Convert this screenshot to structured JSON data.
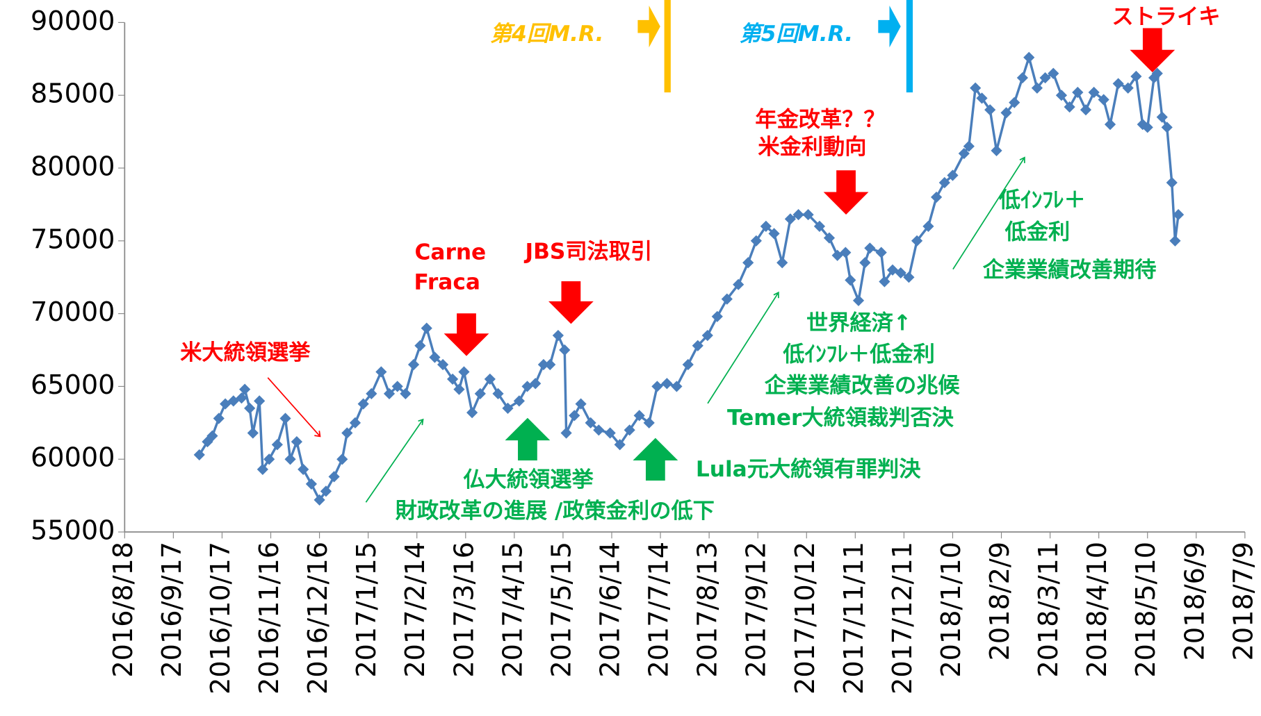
{
  "chart_data": {
    "type": "line",
    "xlim": [
      "2016/8/18",
      "2018/7/9"
    ],
    "xticks": [
      "2016/8/18",
      "2016/9/17",
      "2016/10/17",
      "2016/11/16",
      "2016/12/16",
      "2017/1/15",
      "2017/2/14",
      "2017/3/16",
      "2017/4/15",
      "2017/5/15",
      "2017/6/14",
      "2017/7/14",
      "2017/8/13",
      "2017/9/12",
      "2017/10/12",
      "2017/11/11",
      "2017/12/11",
      "2018/1/10",
      "2018/2/9",
      "2018/3/11",
      "2018/4/10",
      "2018/5/10",
      "2018/6/9",
      "2018/7/9"
    ],
    "ylim": [
      55000,
      90000
    ],
    "yticks": [
      55000,
      60000,
      65000,
      70000,
      75000,
      80000,
      85000,
      90000
    ],
    "x": [
      "2016/10/3",
      "2016/10/8",
      "2016/10/11",
      "2016/10/15",
      "2016/10/19",
      "2016/10/24",
      "2016/10/29",
      "2016/10/31",
      "2016/11/3",
      "2016/11/5",
      "2016/11/9",
      "2016/11/11",
      "2016/11/15",
      "2016/11/20",
      "2016/11/25",
      "2016/11/28",
      "2016/12/2",
      "2016/12/6",
      "2016/12/11",
      "2016/12/16",
      "2016/12/20",
      "2016/12/25",
      "2016/12/30",
      "2017/1/2",
      "2017/1/7",
      "2017/1/12",
      "2017/1/17",
      "2017/1/23",
      "2017/1/28",
      "2017/2/2",
      "2017/2/7",
      "2017/2/12",
      "2017/2/16",
      "2017/2/20",
      "2017/2/25",
      "2017/3/2",
      "2017/3/8",
      "2017/3/12",
      "2017/3/15",
      "2017/3/20",
      "2017/3/25",
      "2017/3/31",
      "2017/4/5",
      "2017/4/11",
      "2017/4/18",
      "2017/4/23",
      "2017/4/28",
      "2017/5/3",
      "2017/5/7",
      "2017/5/12",
      "2017/5/16",
      "2017/5/17",
      "2017/5/22",
      "2017/5/26",
      "2017/6/1",
      "2017/6/6",
      "2017/6/13",
      "2017/6/19",
      "2017/6/25",
      "2017/7/1",
      "2017/7/7",
      "2017/7/12",
      "2017/7/18",
      "2017/7/24",
      "2017/7/31",
      "2017/8/6",
      "2017/8/12",
      "2017/8/18",
      "2017/8/24",
      "2017/8/31",
      "2017/9/6",
      "2017/9/11",
      "2017/9/17",
      "2017/9/22",
      "2017/9/27",
      "2017/10/2",
      "2017/10/7",
      "2017/10/13",
      "2017/10/20",
      "2017/10/26",
      "2017/10/31",
      "2017/11/5",
      "2017/11/8",
      "2017/11/13",
      "2017/11/17",
      "2017/11/20",
      "2017/11/27",
      "2017/11/29",
      "2017/12/4",
      "2017/12/9",
      "2017/12/14",
      "2017/12/19",
      "2017/12/26",
      "2017/12/31",
      "2018/1/5",
      "2018/1/10",
      "2018/1/17",
      "2018/1/20",
      "2018/1/24",
      "2018/1/28",
      "2018/2/2",
      "2018/2/6",
      "2018/2/12",
      "2018/2/17",
      "2018/2/22",
      "2018/2/26",
      "2018/3/3",
      "2018/3/8",
      "2018/3/13",
      "2018/3/18",
      "2018/3/23",
      "2018/3/28",
      "2018/4/2",
      "2018/4/7",
      "2018/4/13",
      "2018/4/17",
      "2018/4/22",
      "2018/4/28",
      "2018/5/3",
      "2018/5/7",
      "2018/5/10",
      "2018/5/14",
      "2018/5/16",
      "2018/5/19",
      "2018/5/22",
      "2018/5/25",
      "2018/5/27",
      "2018/5/29"
    ],
    "series": [
      {
        "color": "#4a7ebb",
        "values": [
          60300,
          61200,
          61600,
          62800,
          63800,
          64000,
          64200,
          64800,
          63500,
          61800,
          64000,
          59300,
          60000,
          61000,
          62800,
          60000,
          61200,
          59300,
          58300,
          57200,
          57800,
          58800,
          60000,
          61800,
          62500,
          63800,
          64500,
          66000,
          64500,
          65000,
          64500,
          66500,
          67800,
          69000,
          67000,
          66500,
          65500,
          64800,
          66000,
          63200,
          64500,
          65500,
          64500,
          63500,
          64000,
          65000,
          65200,
          66500,
          66500,
          68500,
          67500,
          61800,
          63000,
          63800,
          62500,
          62000,
          61800,
          61000,
          62000,
          63000,
          62500,
          65000,
          65200,
          65000,
          66500,
          67800,
          68500,
          69800,
          71000,
          72000,
          73500,
          75000,
          76000,
          75500,
          73500,
          76500,
          76800,
          76800,
          76000,
          75200,
          74000,
          74200,
          72300,
          70900,
          73500,
          74500,
          74200,
          72200,
          73000,
          72800,
          72500,
          75000,
          76000,
          78000,
          79000,
          79500,
          81000,
          81500,
          85500,
          84800,
          84000,
          81200,
          83800,
          84500,
          86200,
          87600,
          85500,
          86200,
          86500,
          85000,
          84200,
          85200,
          84000,
          85200,
          84700,
          83000,
          85800,
          85500,
          86300,
          83000,
          82800,
          86200,
          86500,
          83500,
          82800,
          79000,
          75000,
          76800
        ]
      }
    ],
    "annotations": [
      "第4回M.R.",
      "第5回M.R.",
      "ストライキ",
      "年金改革？？",
      "米金利動向",
      "Carne",
      "Fraca",
      "JBS司法取引",
      "米大統領選挙",
      "世界経済↑",
      "低ｲﾝﾌﾚ＋低金利",
      "企業業績改善の兆候",
      "Temer大統領裁判否決",
      "仏大統領選挙",
      "財政改革の進展 /政策金利の低下",
      "Lula元大統領有罪判決",
      "低ｲﾝﾌﾚ＋",
      "低金利",
      "企業業績改善期待"
    ]
  }
}
